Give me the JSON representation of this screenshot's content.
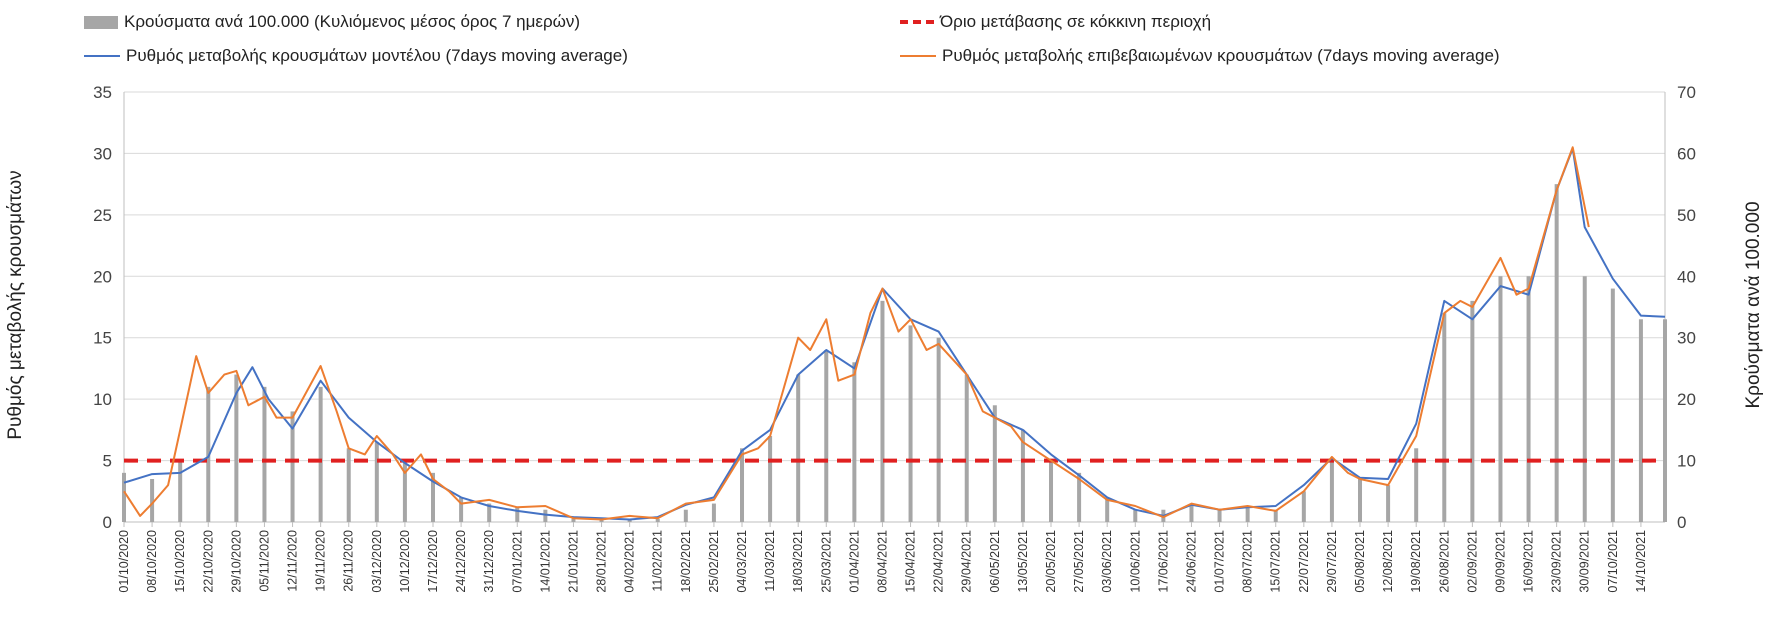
{
  "legend": {
    "bars": "Κρούσματα ανά 100.000 (Κυλιόμενος μέσος όρος 7 ημερών)",
    "threshold": "Όριο μετάβασης σε κόκκινη περιοχή",
    "model": "Ρυθμός μεταβολής κρουσμάτων μοντέλου (7days moving average)",
    "confirmed": "Ρυθμός μεταβολής επιβεβαιωμένων κρουσμάτων (7days moving average)"
  },
  "colors": {
    "bars": "#a6a6a6",
    "model": "#4472c4",
    "confirmed": "#ed7d31",
    "threshold": "#e02020",
    "grid": "#d9d9d9"
  },
  "chart_data": {
    "type": "bar",
    "ylabel": "Ρυθμός μεταβολής κρουσμάτων",
    "y2label": "Κρούσματα ανά 100.000",
    "ylim": [
      0,
      35
    ],
    "y2lim": [
      0,
      70
    ],
    "yticks": [
      0,
      5,
      10,
      15,
      20,
      25,
      30,
      35
    ],
    "y2ticks": [
      0,
      10,
      20,
      30,
      40,
      50,
      60,
      70
    ],
    "grid": true,
    "legend_position": "top",
    "x_start": "2020-10-01",
    "x_end": "2021-10-20",
    "x_ticks": [
      "01/10/2020",
      "08/10/2020",
      "15/10/2020",
      "22/10/2020",
      "29/10/2020",
      "05/11/2020",
      "12/11/2020",
      "19/11/2020",
      "26/11/2020",
      "03/12/2020",
      "10/12/2020",
      "17/12/2020",
      "24/12/2020",
      "31/12/2020",
      "07/01/2021",
      "14/01/2021",
      "21/01/2021",
      "28/01/2021",
      "04/02/2021",
      "11/02/2021",
      "18/02/2021",
      "25/02/2021",
      "04/03/2021",
      "11/03/2021",
      "18/03/2021",
      "25/03/2021",
      "01/04/2021",
      "08/04/2021",
      "15/04/2021",
      "22/04/2021",
      "29/04/2021",
      "06/05/2021",
      "13/05/2021",
      "20/05/2021",
      "27/05/2021",
      "03/06/2021",
      "10/06/2021",
      "17/06/2021",
      "24/06/2021",
      "01/07/2021",
      "08/07/2021",
      "15/07/2021",
      "22/07/2021",
      "29/07/2021",
      "05/08/2021",
      "12/08/2021",
      "19/08/2021",
      "26/08/2021",
      "02/09/2021",
      "09/09/2021",
      "16/09/2021",
      "23/09/2021",
      "30/09/2021",
      "07/10/2021",
      "14/10/2021"
    ],
    "threshold": {
      "name": "Όριο μετάβασης σε κόκκινη περιοχή",
      "value": 5,
      "axis": "left"
    },
    "series": [
      {
        "name": "Κρούσματα ανά 100.000 (Κυλιόμενος μέσος όρος 7 ημερών)",
        "type": "bar",
        "axis": "right",
        "points": [
          [
            "2020-10-01",
            8
          ],
          [
            "2020-10-08",
            7
          ],
          [
            "2020-10-15",
            10
          ],
          [
            "2020-10-22",
            22
          ],
          [
            "2020-10-29",
            24
          ],
          [
            "2020-11-05",
            22
          ],
          [
            "2020-11-12",
            18
          ],
          [
            "2020-11-19",
            22
          ],
          [
            "2020-11-26",
            12
          ],
          [
            "2020-12-03",
            13
          ],
          [
            "2020-12-10",
            10
          ],
          [
            "2020-12-17",
            8
          ],
          [
            "2020-12-24",
            4
          ],
          [
            "2020-12-31",
            3
          ],
          [
            "2021-01-07",
            2.5
          ],
          [
            "2021-01-14",
            2
          ],
          [
            "2021-01-21",
            0.5
          ],
          [
            "2021-01-28",
            0.5
          ],
          [
            "2021-02-04",
            0.5
          ],
          [
            "2021-02-11",
            0.5
          ],
          [
            "2021-02-18",
            2
          ],
          [
            "2021-02-25",
            3
          ],
          [
            "2021-03-04",
            12
          ],
          [
            "2021-03-11",
            14
          ],
          [
            "2021-03-18",
            24
          ],
          [
            "2021-03-25",
            28
          ],
          [
            "2021-04-01",
            26
          ],
          [
            "2021-04-08",
            36
          ],
          [
            "2021-04-15",
            32
          ],
          [
            "2021-04-22",
            30
          ],
          [
            "2021-04-29",
            24
          ],
          [
            "2021-05-06",
            19
          ],
          [
            "2021-05-13",
            15
          ],
          [
            "2021-05-20",
            10
          ],
          [
            "2021-05-27",
            8
          ],
          [
            "2021-06-03",
            4
          ],
          [
            "2021-06-10",
            2
          ],
          [
            "2021-06-17",
            2
          ],
          [
            "2021-06-24",
            3
          ],
          [
            "2021-07-01",
            2
          ],
          [
            "2021-07-08",
            2.5
          ],
          [
            "2021-07-15",
            2
          ],
          [
            "2021-07-22",
            5
          ],
          [
            "2021-07-29",
            10
          ],
          [
            "2021-08-05",
            7
          ],
          [
            "2021-08-12",
            6
          ],
          [
            "2021-08-19",
            12
          ],
          [
            "2021-08-26",
            34
          ],
          [
            "2021-09-02",
            36
          ],
          [
            "2021-09-09",
            40
          ],
          [
            "2021-09-16",
            40
          ],
          [
            "2021-09-23",
            55
          ],
          [
            "2021-09-30",
            40
          ],
          [
            "2021-10-07",
            38
          ],
          [
            "2021-10-14",
            33
          ],
          [
            "2021-10-20",
            33
          ]
        ]
      },
      {
        "name": "Ρυθμός μεταβολής κρουσμάτων μοντέλου (7days moving average)",
        "type": "line",
        "axis": "left",
        "points": [
          [
            "2020-10-01",
            3.2
          ],
          [
            "2020-10-08",
            3.9
          ],
          [
            "2020-10-15",
            4.0
          ],
          [
            "2020-10-22",
            5.3
          ],
          [
            "2020-10-29",
            10.5
          ],
          [
            "2020-11-02",
            12.6
          ],
          [
            "2020-11-06",
            10.0
          ],
          [
            "2020-11-12",
            7.6
          ],
          [
            "2020-11-19",
            11.5
          ],
          [
            "2020-11-26",
            8.5
          ],
          [
            "2020-12-03",
            6.5
          ],
          [
            "2020-12-10",
            4.8
          ],
          [
            "2020-12-17",
            3.3
          ],
          [
            "2020-12-24",
            2.0
          ],
          [
            "2020-12-31",
            1.3
          ],
          [
            "2021-01-07",
            0.9
          ],
          [
            "2021-01-14",
            0.6
          ],
          [
            "2021-01-21",
            0.4
          ],
          [
            "2021-01-28",
            0.3
          ],
          [
            "2021-02-04",
            0.2
          ],
          [
            "2021-02-11",
            0.4
          ],
          [
            "2021-02-18",
            1.4
          ],
          [
            "2021-02-25",
            2.0
          ],
          [
            "2021-03-04",
            5.8
          ],
          [
            "2021-03-11",
            7.5
          ],
          [
            "2021-03-18",
            12.0
          ],
          [
            "2021-03-25",
            14.0
          ],
          [
            "2021-04-01",
            12.5
          ],
          [
            "2021-04-08",
            19.0
          ],
          [
            "2021-04-15",
            16.5
          ],
          [
            "2021-04-22",
            15.5
          ],
          [
            "2021-04-29",
            12.0
          ],
          [
            "2021-05-06",
            8.5
          ],
          [
            "2021-05-13",
            7.5
          ],
          [
            "2021-05-20",
            5.5
          ],
          [
            "2021-05-27",
            3.8
          ],
          [
            "2021-06-03",
            2.0
          ],
          [
            "2021-06-10",
            1.0
          ],
          [
            "2021-06-17",
            0.5
          ],
          [
            "2021-06-24",
            1.4
          ],
          [
            "2021-07-01",
            1.0
          ],
          [
            "2021-07-08",
            1.2
          ],
          [
            "2021-07-15",
            1.3
          ],
          [
            "2021-07-22",
            3.0
          ],
          [
            "2021-07-29",
            5.2
          ],
          [
            "2021-08-05",
            3.6
          ],
          [
            "2021-08-12",
            3.5
          ],
          [
            "2021-08-19",
            8.0
          ],
          [
            "2021-08-26",
            18.0
          ],
          [
            "2021-09-02",
            16.5
          ],
          [
            "2021-09-09",
            19.2
          ],
          [
            "2021-09-16",
            18.5
          ],
          [
            "2021-09-23",
            27.0
          ],
          [
            "2021-09-27",
            30.4
          ],
          [
            "2021-09-30",
            24.0
          ],
          [
            "2021-10-07",
            19.8
          ],
          [
            "2021-10-14",
            16.8
          ],
          [
            "2021-10-20",
            16.7
          ]
        ]
      },
      {
        "name": "Ρυθμός μεταβολής επιβεβαιωμένων κρουσμάτων (7days moving average)",
        "type": "line",
        "axis": "left",
        "points": [
          [
            "2020-10-01",
            2.5
          ],
          [
            "2020-10-05",
            0.5
          ],
          [
            "2020-10-08",
            1.5
          ],
          [
            "2020-10-12",
            3.0
          ],
          [
            "2020-10-15",
            7.5
          ],
          [
            "2020-10-19",
            13.5
          ],
          [
            "2020-10-22",
            10.5
          ],
          [
            "2020-10-26",
            12.0
          ],
          [
            "2020-10-29",
            12.3
          ],
          [
            "2020-11-01",
            9.5
          ],
          [
            "2020-11-05",
            10.2
          ],
          [
            "2020-11-08",
            8.5
          ],
          [
            "2020-11-12",
            8.5
          ],
          [
            "2020-11-19",
            12.7
          ],
          [
            "2020-11-23",
            9.0
          ],
          [
            "2020-11-26",
            6.0
          ],
          [
            "2020-11-30",
            5.5
          ],
          [
            "2020-12-03",
            7.0
          ],
          [
            "2020-12-07",
            5.5
          ],
          [
            "2020-12-10",
            4.0
          ],
          [
            "2020-12-14",
            5.5
          ],
          [
            "2020-12-17",
            3.5
          ],
          [
            "2020-12-21",
            2.5
          ],
          [
            "2020-12-24",
            1.5
          ],
          [
            "2020-12-31",
            1.8
          ],
          [
            "2021-01-07",
            1.2
          ],
          [
            "2021-01-14",
            1.3
          ],
          [
            "2021-01-21",
            0.3
          ],
          [
            "2021-01-28",
            0.2
          ],
          [
            "2021-02-04",
            0.5
          ],
          [
            "2021-02-11",
            0.3
          ],
          [
            "2021-02-18",
            1.5
          ],
          [
            "2021-02-25",
            1.8
          ],
          [
            "2021-03-04",
            5.5
          ],
          [
            "2021-03-08",
            6.0
          ],
          [
            "2021-03-11",
            7.0
          ],
          [
            "2021-03-18",
            15.0
          ],
          [
            "2021-03-21",
            14.0
          ],
          [
            "2021-03-25",
            16.5
          ],
          [
            "2021-03-28",
            11.5
          ],
          [
            "2021-04-01",
            12.0
          ],
          [
            "2021-04-05",
            17.0
          ],
          [
            "2021-04-08",
            19.0
          ],
          [
            "2021-04-12",
            15.5
          ],
          [
            "2021-04-15",
            16.5
          ],
          [
            "2021-04-19",
            14.0
          ],
          [
            "2021-04-22",
            14.5
          ],
          [
            "2021-04-29",
            12.0
          ],
          [
            "2021-05-03",
            9.0
          ],
          [
            "2021-05-06",
            8.5
          ],
          [
            "2021-05-10",
            7.8
          ],
          [
            "2021-05-13",
            6.5
          ],
          [
            "2021-05-20",
            5.0
          ],
          [
            "2021-05-27",
            3.5
          ],
          [
            "2021-06-03",
            1.8
          ],
          [
            "2021-06-10",
            1.3
          ],
          [
            "2021-06-17",
            0.4
          ],
          [
            "2021-06-24",
            1.5
          ],
          [
            "2021-07-01",
            1.0
          ],
          [
            "2021-07-08",
            1.3
          ],
          [
            "2021-07-15",
            0.9
          ],
          [
            "2021-07-22",
            2.5
          ],
          [
            "2021-07-29",
            5.3
          ],
          [
            "2021-08-02",
            4.0
          ],
          [
            "2021-08-05",
            3.5
          ],
          [
            "2021-08-12",
            3.0
          ],
          [
            "2021-08-19",
            7.0
          ],
          [
            "2021-08-26",
            17.0
          ],
          [
            "2021-08-30",
            18.0
          ],
          [
            "2021-09-02",
            17.5
          ],
          [
            "2021-09-09",
            21.5
          ],
          [
            "2021-09-13",
            18.5
          ],
          [
            "2021-09-16",
            19.0
          ],
          [
            "2021-09-23",
            27.0
          ],
          [
            "2021-09-27",
            30.5
          ],
          [
            "2021-10-01",
            24.0
          ]
        ]
      }
    ]
  }
}
